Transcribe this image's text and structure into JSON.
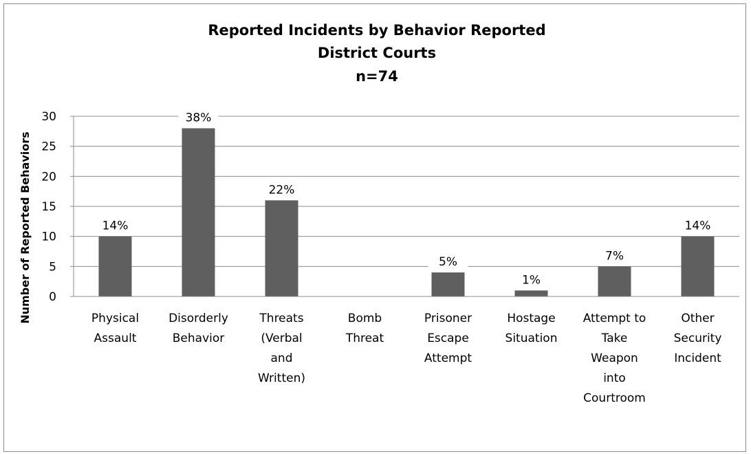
{
  "chart_data": {
    "type": "bar",
    "title": [
      "Reported Incidents by Behavior Reported",
      "District Courts",
      "n=74"
    ],
    "ylabel": "Number of Reported Behaviors",
    "xlabel": "",
    "ylim": [
      0,
      30
    ],
    "yticks": [
      0,
      5,
      10,
      15,
      20,
      25,
      30
    ],
    "grid": true,
    "legend": "none",
    "categories": [
      "Physical Assault",
      "Disorderly Behavior",
      "Threats (Verbal and Written)",
      "Bomb Threat",
      "Prisoner Escape Attempt",
      "Hostage Situation",
      "Attempt to Take Weapon into Courtroom",
      "Other Security Incident"
    ],
    "category_lines": [
      [
        "Physical",
        "Assault"
      ],
      [
        "Disorderly",
        "Behavior"
      ],
      [
        "Threats",
        "(Verbal",
        "and",
        "Written)"
      ],
      [
        "Bomb",
        "Threat"
      ],
      [
        "Prisoner",
        "Escape",
        "Attempt"
      ],
      [
        "Hostage",
        "Situation"
      ],
      [
        "Attempt to",
        "Take",
        "Weapon",
        "into",
        "Courtroom"
      ],
      [
        "Other",
        "Security",
        "Incident"
      ]
    ],
    "values": [
      10,
      28,
      16,
      0,
      4,
      1,
      5,
      10
    ],
    "data_labels": [
      "14%",
      "38%",
      "22%",
      "",
      "5%",
      "1%",
      "7%",
      "14%"
    ],
    "colors": {
      "bar": "#5f5f5f",
      "grid": "#8c8c8c",
      "axis": "#8c8c8c",
      "frame": "#8c8c8c"
    }
  }
}
